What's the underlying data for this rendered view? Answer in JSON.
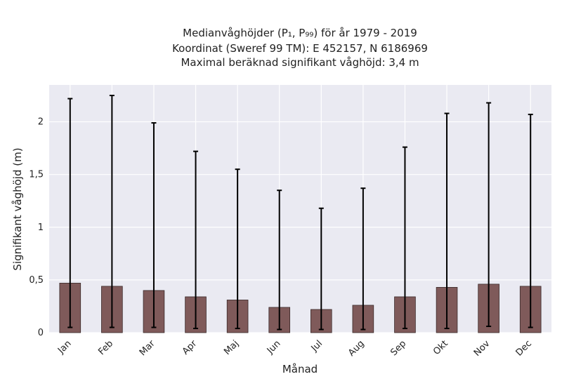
{
  "chart_data": {
    "type": "bar",
    "title_lines": [
      "Medianvåghöjder (P₁, P₉₉) för år 1979 - 2019",
      "Koordinat (Sweref 99 TM): E 452157, N 6186969",
      "Maximal beräknad signifikant våghöjd: 3,4 m"
    ],
    "xlabel": "Månad",
    "ylabel": "Signifikant våghöjd (m)",
    "categories": [
      "Jan",
      "Feb",
      "Mar",
      "Apr",
      "Maj",
      "Jun",
      "Jul",
      "Aug",
      "Sep",
      "Okt",
      "Nov",
      "Dec"
    ],
    "values": [
      0.47,
      0.44,
      0.4,
      0.34,
      0.31,
      0.24,
      0.22,
      0.26,
      0.34,
      0.43,
      0.46,
      0.44
    ],
    "error_low": [
      0.05,
      0.05,
      0.05,
      0.04,
      0.04,
      0.03,
      0.03,
      0.03,
      0.04,
      0.04,
      0.06,
      0.05
    ],
    "error_high": [
      2.22,
      2.25,
      1.99,
      1.72,
      1.55,
      1.35,
      1.18,
      1.37,
      1.76,
      2.08,
      2.18,
      2.07
    ],
    "yticks": [
      0,
      0.5,
      1,
      1.5,
      2
    ],
    "ytick_labels": [
      "0",
      "0,5",
      "1",
      "1,5",
      "2"
    ],
    "ylim": [
      0,
      2.35
    ],
    "grid": true,
    "colors": {
      "bar": "#7f5a5a",
      "bar_edge": "#3a2a2a",
      "error": "#000000",
      "plot_bg": "#eaeaf2",
      "grid": "#ffffff"
    }
  }
}
